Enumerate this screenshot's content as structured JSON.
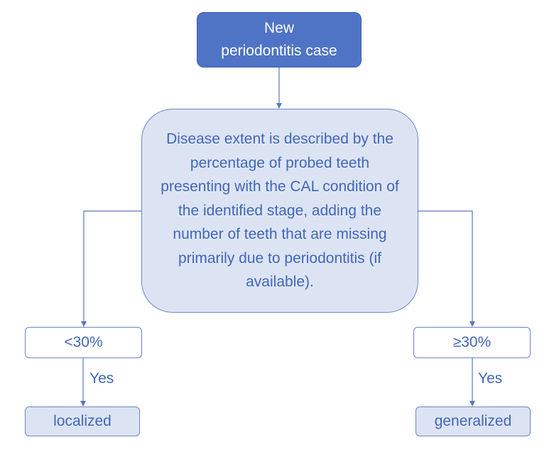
{
  "start": {
    "label": "New\nperiodontitis case"
  },
  "decision": {
    "label": "Disease extent is described by the percentage of probed teeth presenting with the CAL condition of the identified stage, adding the number of teeth that are missing primarily due to periodontitis (if available)."
  },
  "branches": {
    "left": {
      "condition": "<30%",
      "edge_label": "Yes",
      "outcome": "localized"
    },
    "right": {
      "condition": "≥30%",
      "edge_label": "Yes",
      "outcome": "generalized"
    }
  },
  "colors": {
    "accent": "#4f74c6",
    "text": "#4267b8",
    "fill": "#dce4f4",
    "line": "#6a86c8"
  }
}
